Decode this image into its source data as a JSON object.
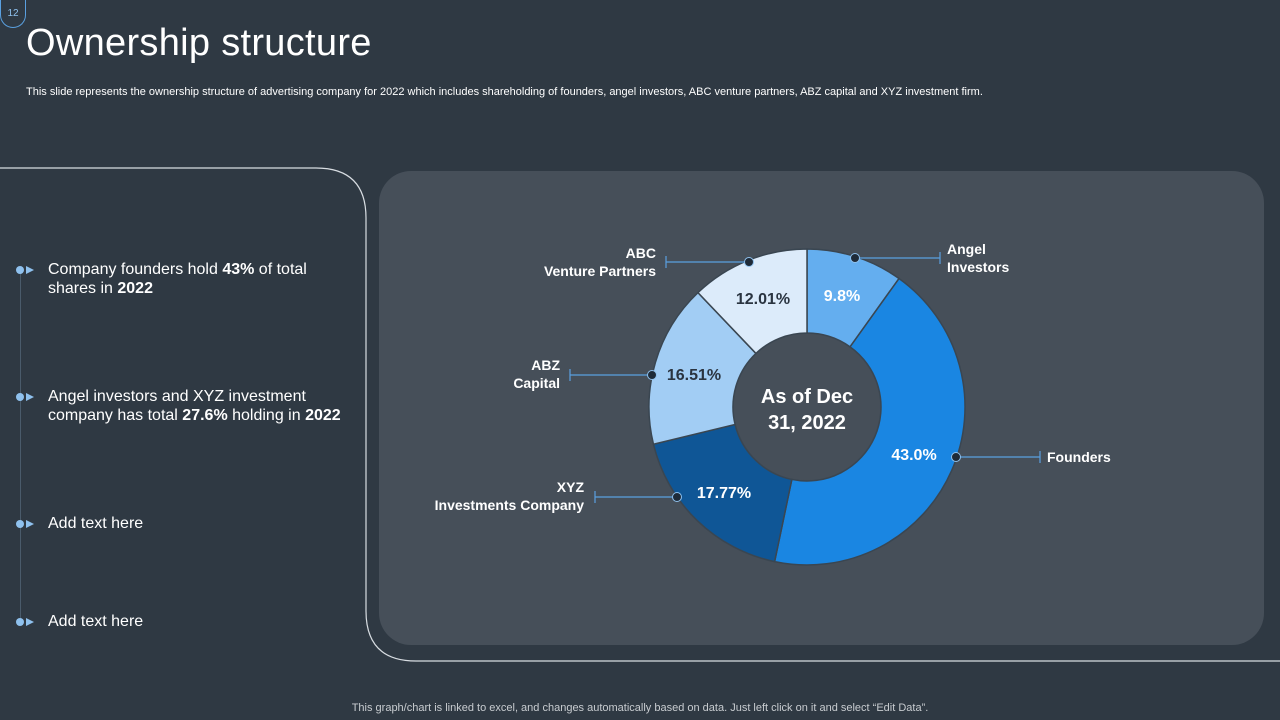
{
  "slide_number": "12",
  "title": "Ownership structure",
  "subtitle": "This slide represents the ownership structure of advertising company for 2022 which includes shareholding of founders, angel investors, ABC venture partners, ABZ capital and XYZ  investment firm.",
  "points": [
    {
      "pre": "Company founders hold ",
      "b1": "43%",
      "mid": " of total shares in ",
      "b2": "2022"
    },
    {
      "pre": "Angel investors and XYZ investment company has total ",
      "b1": "27.6%",
      "mid": " holding in ",
      "b2": "2022"
    },
    {
      "pre": "Add text here",
      "b1": "",
      "mid": "",
      "b2": ""
    },
    {
      "pre": "Add text here",
      "b1": "",
      "mid": "",
      "b2": ""
    }
  ],
  "chart_data": {
    "type": "pie",
    "variant": "donut",
    "center_label": [
      "As of Dec",
      "31, 2022"
    ],
    "slices": [
      {
        "name": "Angel Investors",
        "label_lines": [
          "Angel",
          "Investors"
        ],
        "value": 9.8,
        "display": "9.8%",
        "color": "#64aeef"
      },
      {
        "name": "Founders",
        "label_lines": [
          "Founders"
        ],
        "value": 43.0,
        "display": "43.0%",
        "color": "#1a86e2"
      },
      {
        "name": "XYZ Investments Company",
        "label_lines": [
          "XYZ",
          "Investments Company"
        ],
        "value": 17.77,
        "display": "17.77%",
        "color": "#0f5696"
      },
      {
        "name": "ABZ Capital",
        "label_lines": [
          "ABZ",
          "Capital"
        ],
        "value": 16.51,
        "display": "16.51%",
        "color": "#a2cdf4"
      },
      {
        "name": "ABC Venture Partners",
        "label_lines": [
          "ABC",
          "Venture Partners"
        ],
        "value": 12.01,
        "display": "12.01%",
        "color": "#dcebfa"
      }
    ]
  },
  "footer": "This graph/chart is linked to excel,  and changes automatically based on data. Just left click on it and select “Edit Data”.",
  "colors": {
    "background": "#2f3943",
    "panel": "#464f59",
    "accent": "#8fc1ee"
  }
}
